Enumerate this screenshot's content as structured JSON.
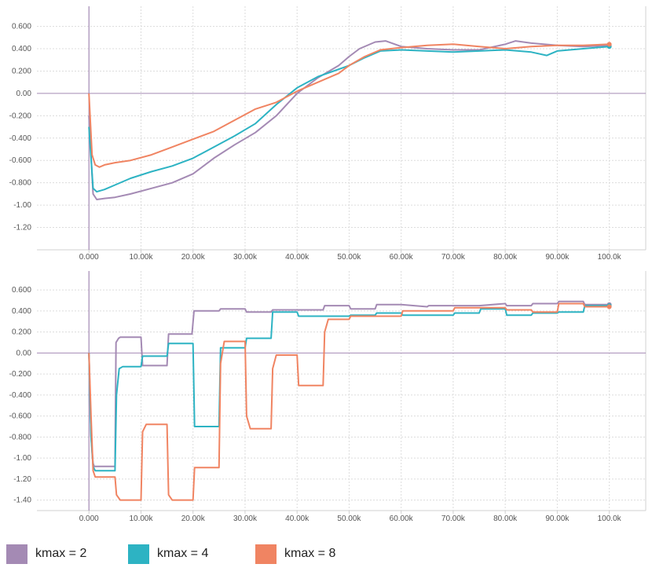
{
  "chart_data": [
    {
      "type": "line",
      "name": "top",
      "x_range": [
        -10000,
        107000
      ],
      "ylim": [
        -1.4,
        0.78
      ],
      "x_ticks": [
        0,
        10000,
        20000,
        30000,
        40000,
        50000,
        60000,
        70000,
        80000,
        90000,
        100000
      ],
      "x_tick_labels": [
        "0.000",
        "10.00k",
        "20.00k",
        "30.00k",
        "40.00k",
        "50.00k",
        "60.00k",
        "70.00k",
        "80.00k",
        "90.00k",
        "100.0k"
      ],
      "y_ticks": [
        0.6,
        0.4,
        0.2,
        0,
        -0.2,
        -0.4,
        -0.6,
        -0.8,
        -1.0,
        -1.2
      ],
      "y_tick_labels": [
        "0.600",
        "0.400",
        "0.200",
        "0.00",
        "-0.200",
        "-0.400",
        "-0.600",
        "-0.800",
        "-1.00",
        "-1.20"
      ],
      "series": [
        {
          "name": "kmax = 2",
          "color": "#a48ab4",
          "x": [
            0,
            800,
            1500,
            3000,
            5000,
            8000,
            12000,
            16000,
            20000,
            24000,
            28000,
            32000,
            36000,
            40000,
            44000,
            48000,
            50000,
            52000,
            55000,
            57000,
            60000,
            65000,
            70000,
            75000,
            80000,
            82000,
            85000,
            90000,
            95000,
            100000
          ],
          "y": [
            -0.2,
            -0.9,
            -0.95,
            -0.94,
            -0.93,
            -0.9,
            -0.85,
            -0.8,
            -0.72,
            -0.58,
            -0.46,
            -0.35,
            -0.2,
            0.0,
            0.14,
            0.25,
            0.33,
            0.4,
            0.46,
            0.47,
            0.42,
            0.4,
            0.39,
            0.39,
            0.44,
            0.47,
            0.45,
            0.43,
            0.42,
            0.43
          ]
        },
        {
          "name": "kmax = 4",
          "color": "#2db3c3",
          "x": [
            0,
            800,
            1500,
            3000,
            5000,
            8000,
            12000,
            16000,
            20000,
            24000,
            28000,
            32000,
            36000,
            40000,
            44000,
            47000,
            50000,
            53000,
            56000,
            60000,
            65000,
            70000,
            75000,
            80000,
            85000,
            88000,
            90000,
            95000,
            100000
          ],
          "y": [
            -0.3,
            -0.85,
            -0.88,
            -0.86,
            -0.82,
            -0.76,
            -0.7,
            -0.65,
            -0.58,
            -0.48,
            -0.38,
            -0.27,
            -0.1,
            0.05,
            0.15,
            0.2,
            0.25,
            0.32,
            0.38,
            0.39,
            0.38,
            0.37,
            0.38,
            0.39,
            0.37,
            0.34,
            0.38,
            0.4,
            0.42
          ]
        },
        {
          "name": "kmax = 8",
          "color": "#f08462",
          "x": [
            0,
            600,
            1200,
            2000,
            3000,
            5000,
            8000,
            12000,
            16000,
            20000,
            24000,
            28000,
            32000,
            36000,
            40000,
            44000,
            48000,
            50000,
            53000,
            56000,
            60000,
            65000,
            70000,
            75000,
            80000,
            85000,
            90000,
            95000,
            100000
          ],
          "y": [
            0.0,
            -0.55,
            -0.64,
            -0.66,
            -0.64,
            -0.62,
            -0.6,
            -0.55,
            -0.48,
            -0.41,
            -0.34,
            -0.24,
            -0.14,
            -0.08,
            0.02,
            0.1,
            0.18,
            0.25,
            0.33,
            0.39,
            0.41,
            0.43,
            0.44,
            0.42,
            0.4,
            0.42,
            0.43,
            0.43,
            0.44
          ]
        }
      ]
    },
    {
      "type": "line",
      "name": "bottom",
      "x_range": [
        -10000,
        107000
      ],
      "ylim": [
        -1.5,
        0.78
      ],
      "x_ticks": [
        0,
        10000,
        20000,
        30000,
        40000,
        50000,
        60000,
        70000,
        80000,
        90000,
        100000
      ],
      "x_tick_labels": [
        "0.000",
        "10.00k",
        "20.00k",
        "30.00k",
        "40.00k",
        "50.00k",
        "60.00k",
        "70.00k",
        "80.00k",
        "90.00k",
        "100.0k"
      ],
      "y_ticks": [
        0.6,
        0.4,
        0.2,
        0,
        -0.2,
        -0.4,
        -0.6,
        -0.8,
        -1.0,
        -1.2,
        -1.4
      ],
      "y_tick_labels": [
        "0.600",
        "0.400",
        "0.200",
        "0.00",
        "-0.200",
        "-0.400",
        "-0.600",
        "-0.800",
        "-1.00",
        "-1.20",
        "-1.40"
      ],
      "series": [
        {
          "name": "kmax = 2",
          "color": "#a48ab4",
          "x": [
            0,
            400,
            800,
            1000,
            5000,
            5200,
            5700,
            6000,
            10000,
            10300,
            15000,
            15300,
            19800,
            20200,
            25000,
            25300,
            30000,
            30300,
            35000,
            35300,
            45000,
            45300,
            50000,
            50300,
            55000,
            55300,
            60000,
            65000,
            65300,
            75000,
            80000,
            80300,
            85000,
            85300,
            90000,
            90300,
            95000,
            95300,
            100000
          ],
          "y": [
            0.0,
            -0.8,
            -1.05,
            -1.08,
            -1.08,
            0.1,
            0.14,
            0.15,
            0.15,
            -0.12,
            -0.12,
            0.18,
            0.18,
            0.4,
            0.4,
            0.42,
            0.42,
            0.39,
            0.39,
            0.41,
            0.41,
            0.45,
            0.45,
            0.42,
            0.42,
            0.46,
            0.46,
            0.44,
            0.45,
            0.45,
            0.47,
            0.45,
            0.45,
            0.47,
            0.47,
            0.49,
            0.49,
            0.46,
            0.46
          ]
        },
        {
          "name": "kmax = 4",
          "color": "#2db3c3",
          "x": [
            0,
            400,
            800,
            1200,
            5000,
            5300,
            5800,
            6500,
            10000,
            10300,
            15000,
            15300,
            20000,
            20300,
            25000,
            25300,
            30000,
            30300,
            35000,
            35300,
            40000,
            40300,
            50000,
            50300,
            55000,
            55300,
            60000,
            60300,
            70000,
            70300,
            75000,
            75300,
            80000,
            80300,
            85000,
            85300,
            90000,
            90300,
            95000,
            95300,
            100000
          ],
          "y": [
            0.0,
            -0.8,
            -1.08,
            -1.12,
            -1.12,
            -0.4,
            -0.15,
            -0.13,
            -0.13,
            -0.03,
            -0.03,
            0.09,
            0.09,
            -0.7,
            -0.7,
            0.05,
            0.05,
            0.14,
            0.14,
            0.39,
            0.39,
            0.35,
            0.35,
            0.36,
            0.36,
            0.38,
            0.38,
            0.36,
            0.36,
            0.38,
            0.38,
            0.42,
            0.42,
            0.36,
            0.36,
            0.38,
            0.38,
            0.39,
            0.39,
            0.45,
            0.45
          ]
        },
        {
          "name": "kmax = 8",
          "color": "#f08462",
          "x": [
            0,
            400,
            800,
            1200,
            5000,
            5300,
            6000,
            10000,
            10300,
            11000,
            15000,
            15300,
            16000,
            20000,
            20300,
            25000,
            25300,
            26000,
            30000,
            30300,
            31000,
            35000,
            35300,
            36000,
            40000,
            40300,
            45000,
            45300,
            46000,
            50000,
            50300,
            60000,
            60300,
            70000,
            70300,
            80000,
            80300,
            85000,
            85300,
            90000,
            90300,
            95000,
            95300,
            100000
          ],
          "y": [
            0.0,
            -0.6,
            -1.12,
            -1.18,
            -1.18,
            -1.35,
            -1.4,
            -1.4,
            -0.75,
            -0.68,
            -0.68,
            -1.35,
            -1.4,
            -1.4,
            -1.09,
            -1.09,
            -0.1,
            0.11,
            0.11,
            -0.6,
            -0.72,
            -0.72,
            -0.15,
            -0.02,
            -0.02,
            -0.31,
            -0.31,
            0.2,
            0.32,
            0.32,
            0.35,
            0.35,
            0.4,
            0.4,
            0.43,
            0.43,
            0.41,
            0.41,
            0.39,
            0.39,
            0.47,
            0.47,
            0.44,
            0.44
          ]
        }
      ]
    }
  ],
  "legend": [
    {
      "label": "kmax = 2",
      "color": "#a48ab4"
    },
    {
      "label": "kmax = 4",
      "color": "#2db3c3"
    },
    {
      "label": "kmax = 8",
      "color": "#f08462"
    }
  ],
  "colors": {
    "grid": "#dcdcdc",
    "axis_frame": "#d0d0d0",
    "zero_line": "#a48ab4",
    "tick_text": "#555555"
  }
}
